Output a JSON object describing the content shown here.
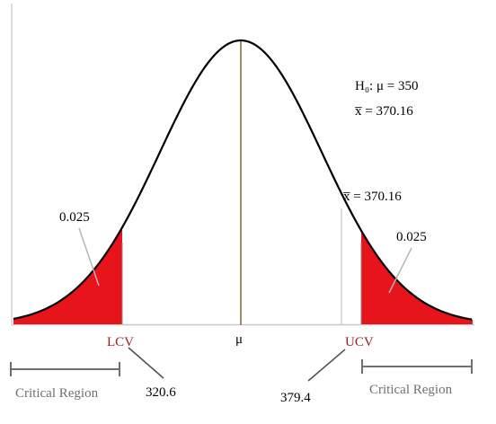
{
  "hypothesis": {
    "h0": "H₀: μ = 350",
    "xbar": "x̅ = 370.16"
  },
  "curve": {
    "xbar_label": "x̅ = 370.16"
  },
  "tails": {
    "left_area": "0.025",
    "right_area": "0.025"
  },
  "axis": {
    "lcv": "LCV",
    "mu": "μ",
    "ucv": "UCV"
  },
  "values": {
    "lcv": "320.6",
    "ucv": "379.4"
  },
  "regions": {
    "left": "Critical Region",
    "right": "Critical Region"
  },
  "colors": {
    "tail_fill": "#e8141c",
    "mu_line": "#a08a6a",
    "label_red": "#9c1c1c",
    "region_gray": "#6f6f6f"
  }
}
